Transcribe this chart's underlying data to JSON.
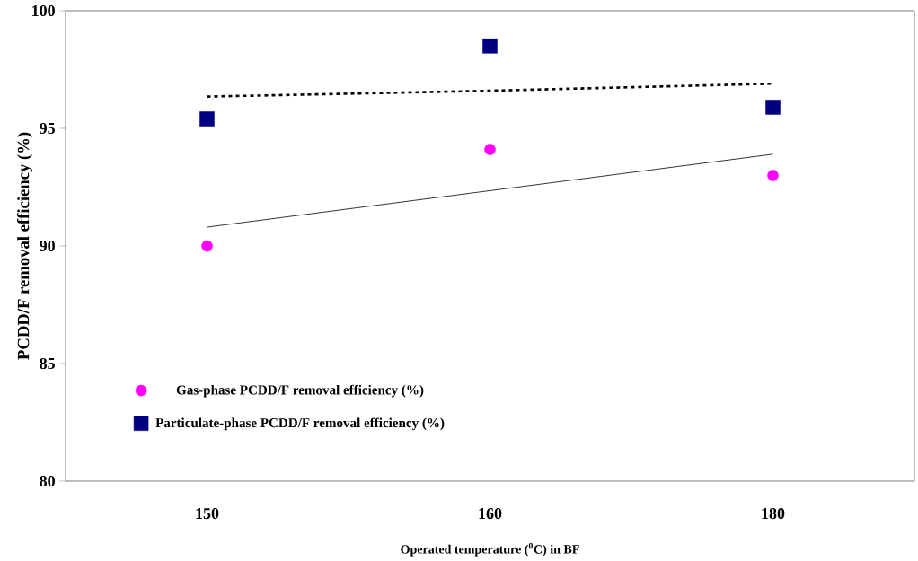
{
  "chart_data": {
    "type": "scatter",
    "xlabel": "Operated temperature ($^{0}$C) in BF",
    "ylabel": "PCDD/F removal efficiency (%)",
    "categories": [
      "150",
      "160",
      "180"
    ],
    "series": [
      {
        "name": "Gas-phase PCDD/F removal efficiency (%)",
        "color": "#ff00ff",
        "marker": "circle",
        "values": [
          90.0,
          94.1,
          93.0
        ]
      },
      {
        "name": "Particulate-phase PCDD/F removal efficiency (%)",
        "color": "#000080",
        "marker": "square",
        "values": [
          95.4,
          98.5,
          95.9
        ]
      },
      {
        "type": "line",
        "color": "#000000",
        "line_style": "solid",
        "values": [
          90.8,
          92.35,
          93.9
        ]
      },
      {
        "type": "line",
        "color": "#000000",
        "line_style": "dotted",
        "values": [
          96.35,
          96.6,
          96.9
        ]
      }
    ],
    "ylim": [
      80,
      100
    ],
    "yticks": [
      80,
      85,
      90,
      95,
      100
    ],
    "grid": false,
    "legend": "bottom left"
  }
}
